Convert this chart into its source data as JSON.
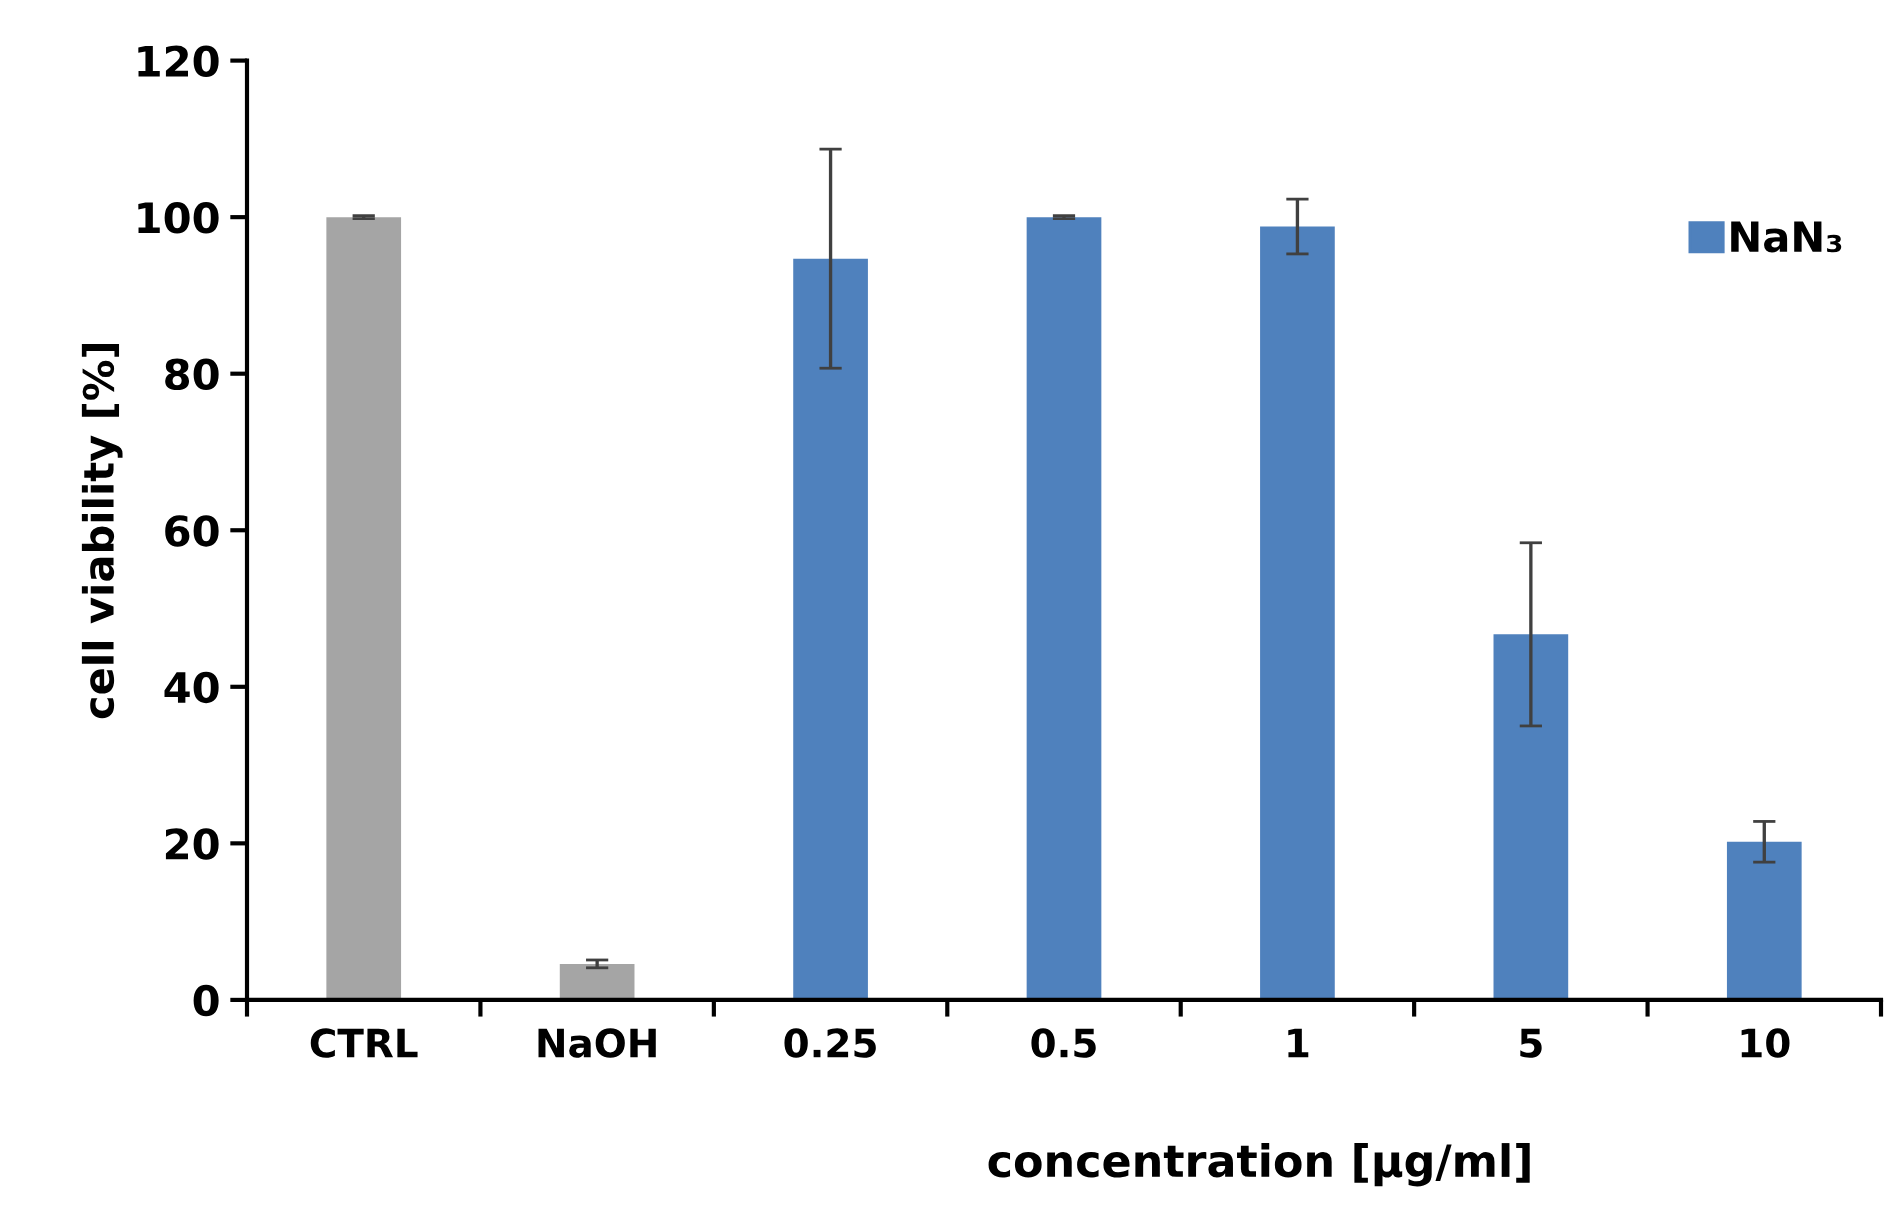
{
  "chart_data": {
    "type": "bar",
    "xlabel": "concentration [µg/ml]",
    "ylabel": "cell viability [%]",
    "categories": [
      "CTRL",
      "NaOH",
      "0.25",
      "0.5",
      "1",
      "5",
      "10"
    ],
    "series": [
      {
        "name": "NaN₃",
        "color": "#4f81bd",
        "colors": [
          "#a5a5a5",
          "#a5a5a5",
          "#4f81bd",
          "#4f81bd",
          "#4f81bd",
          "#4f81bd",
          "#4f81bd"
        ],
        "values": [
          100,
          4.6,
          94.7,
          100,
          98.8,
          46.7,
          20.2
        ],
        "errors": [
          0.2,
          0.5,
          14,
          0.2,
          3.5,
          11.7,
          2.6
        ]
      }
    ],
    "ylim": [
      0,
      120
    ],
    "yticks": [
      0,
      20,
      40,
      60,
      80,
      100,
      120
    ],
    "grid": false,
    "legend": "top right"
  }
}
